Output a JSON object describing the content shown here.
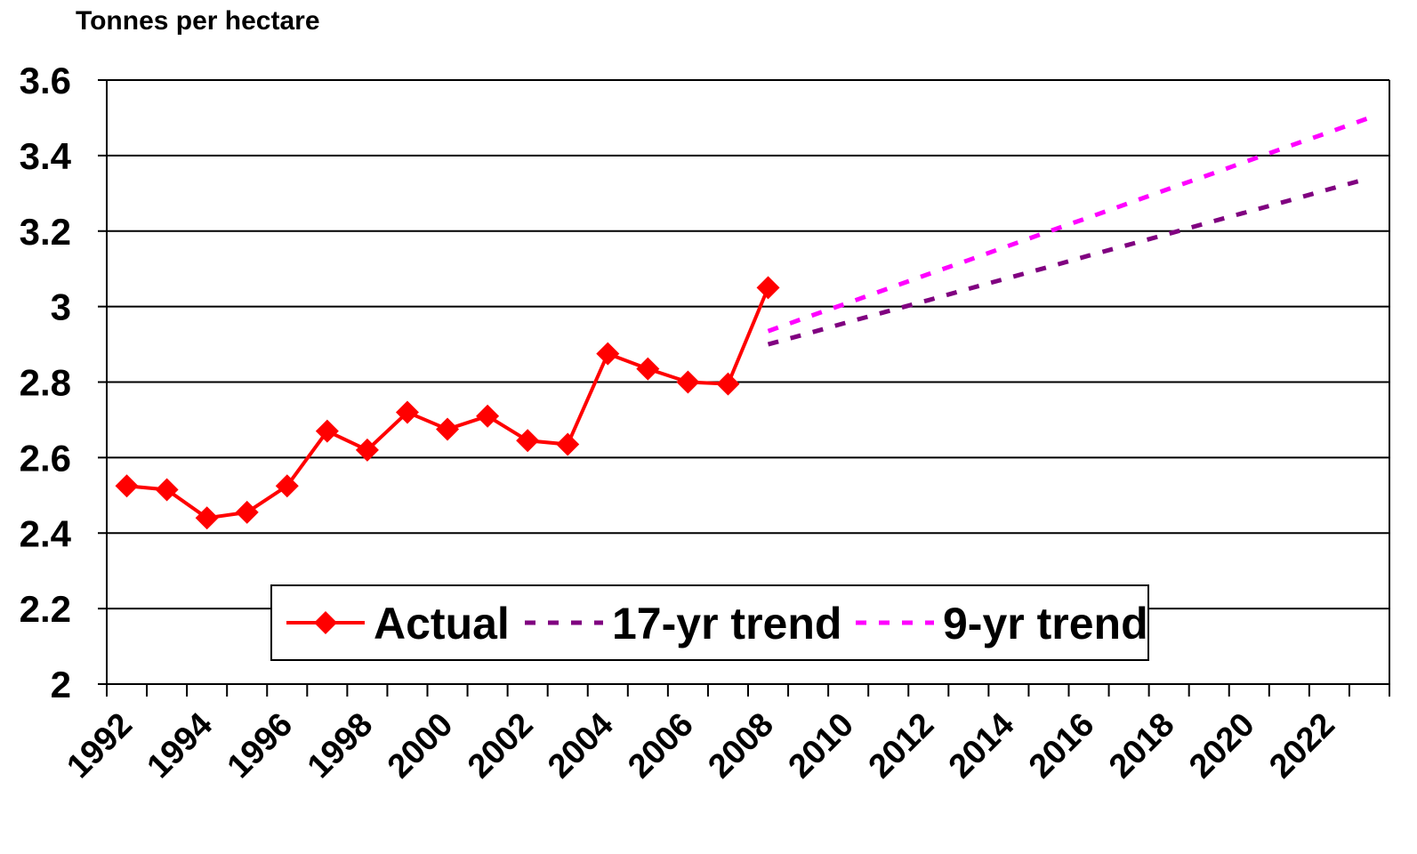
{
  "chart_data": {
    "type": "line",
    "y_label": "Tonnes per hectare",
    "categories": [
      "1992",
      null,
      "1994",
      null,
      "1996",
      null,
      "1998",
      null,
      "2000",
      null,
      "2002",
      null,
      "2004",
      null,
      "2006",
      null,
      "2008",
      null,
      "2010",
      null,
      "2012",
      null,
      "2014",
      null,
      "2016",
      null,
      "2018",
      null,
      "2020",
      null,
      "2022",
      null
    ],
    "series": [
      {
        "name": "Actual",
        "color": "#ff0000",
        "dash": false,
        "marker": true,
        "values": [
          2.525,
          2.515,
          2.44,
          2.455,
          2.525,
          2.67,
          2.62,
          2.72,
          2.675,
          2.71,
          2.645,
          2.635,
          2.875,
          2.835,
          2.8,
          2.795,
          3.05,
          null,
          null,
          null,
          null,
          null,
          null,
          null,
          null,
          null,
          null,
          null,
          null,
          null,
          null,
          null
        ]
      },
      {
        "name": "17-yr trend",
        "color": "#800080",
        "dash": true,
        "marker": false,
        "values": [
          null,
          null,
          null,
          null,
          null,
          null,
          null,
          null,
          null,
          null,
          null,
          null,
          null,
          null,
          null,
          null,
          2.9,
          2.929,
          2.959,
          2.988,
          3.017,
          3.047,
          3.076,
          3.105,
          3.135,
          3.164,
          3.193,
          3.223,
          3.252,
          3.281,
          3.311,
          3.34
        ]
      },
      {
        "name": "9-yr trend",
        "color": "#ff00ff",
        "dash": true,
        "marker": false,
        "values": [
          null,
          null,
          null,
          null,
          null,
          null,
          null,
          null,
          null,
          null,
          null,
          null,
          null,
          null,
          null,
          null,
          2.935,
          2.973,
          3.01,
          3.048,
          3.086,
          3.123,
          3.161,
          3.199,
          3.236,
          3.274,
          3.312,
          3.349,
          3.387,
          3.425,
          3.462,
          3.5
        ]
      }
    ],
    "ylim": [
      2,
      3.6
    ],
    "yticks": [
      2,
      2.2,
      2.4,
      2.6,
      2.8,
      3,
      3.2,
      3.4,
      3.6
    ],
    "grid": true,
    "legend": "bottom"
  }
}
